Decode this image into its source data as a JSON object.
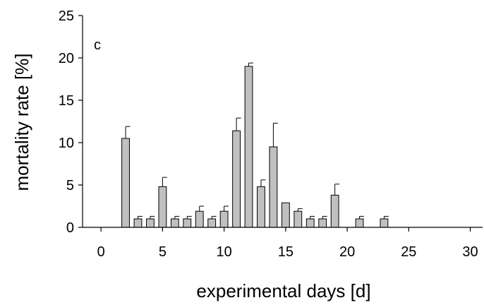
{
  "chart_data": {
    "type": "bar",
    "panel_label": "c",
    "xlabel": "experimental days [d]",
    "ylabel": "mortality rate [%]",
    "xlim": [
      -1.5,
      31
    ],
    "ylim": [
      0,
      25
    ],
    "x_ticks": [
      0,
      5,
      10,
      15,
      20,
      25,
      30
    ],
    "y_ticks": [
      0,
      5,
      10,
      15,
      20,
      25
    ],
    "grid": false,
    "legend": "none",
    "bar_color": "#c0c0c0",
    "series": [
      {
        "points": [
          {
            "x": 2,
            "y": 10.5,
            "err": 1.4
          },
          {
            "x": 3,
            "y": 1.0,
            "err": 0.3
          },
          {
            "x": 4,
            "y": 1.0,
            "err": 0.3
          },
          {
            "x": 5,
            "y": 4.8,
            "err": 1.1
          },
          {
            "x": 6,
            "y": 1.0,
            "err": 0.3
          },
          {
            "x": 7,
            "y": 1.0,
            "err": 0.3
          },
          {
            "x": 8,
            "y": 1.9,
            "err": 0.6
          },
          {
            "x": 9,
            "y": 1.0,
            "err": 0.3
          },
          {
            "x": 10,
            "y": 1.9,
            "err": 0.6
          },
          {
            "x": 11,
            "y": 11.4,
            "err": 1.5
          },
          {
            "x": 12,
            "y": 19.0,
            "err": 0.4
          },
          {
            "x": 13,
            "y": 4.8,
            "err": 0.8
          },
          {
            "x": 14,
            "y": 9.5,
            "err": 2.8
          },
          {
            "x": 15,
            "y": 2.9,
            "err": 0.0
          },
          {
            "x": 16,
            "y": 1.9,
            "err": 0.3
          },
          {
            "x": 17,
            "y": 1.0,
            "err": 0.3
          },
          {
            "x": 18,
            "y": 1.0,
            "err": 0.3
          },
          {
            "x": 19,
            "y": 3.8,
            "err": 1.3
          },
          {
            "x": 21,
            "y": 1.0,
            "err": 0.3
          },
          {
            "x": 23,
            "y": 1.0,
            "err": 0.3
          }
        ]
      }
    ]
  }
}
